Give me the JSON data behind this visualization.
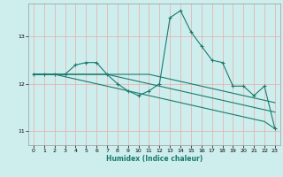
{
  "title": "",
  "xlabel": "Humidex (Indice chaleur)",
  "ylabel": "",
  "background_color": "#ceeeed",
  "grid_color": "#e8aaaa",
  "line_color": "#1a7a6e",
  "xlim": [
    -0.5,
    23.5
  ],
  "ylim": [
    10.7,
    13.7
  ],
  "yticks": [
    11,
    12,
    13
  ],
  "xticks": [
    0,
    1,
    2,
    3,
    4,
    5,
    6,
    7,
    8,
    9,
    10,
    11,
    12,
    13,
    14,
    15,
    16,
    17,
    18,
    19,
    20,
    21,
    22,
    23
  ],
  "series1": {
    "x": [
      0,
      1,
      2,
      3,
      4,
      5,
      6,
      7,
      8,
      9,
      10,
      11,
      12,
      13,
      14,
      15,
      16,
      17,
      18,
      19,
      20,
      21,
      22,
      23
    ],
    "y": [
      12.2,
      12.2,
      12.2,
      12.2,
      12.4,
      12.45,
      12.45,
      12.2,
      12.0,
      11.85,
      11.75,
      11.85,
      12.0,
      13.4,
      13.55,
      13.1,
      12.8,
      12.5,
      12.45,
      11.95,
      11.95,
      11.75,
      11.95,
      11.05
    ]
  },
  "series2": {
    "x": [
      0,
      1,
      2,
      3,
      4,
      5,
      6,
      7,
      8,
      9,
      10,
      11,
      12,
      13,
      14,
      15,
      16,
      17,
      18,
      19,
      20,
      21,
      22,
      23
    ],
    "y": [
      12.2,
      12.2,
      12.2,
      12.2,
      12.2,
      12.2,
      12.2,
      12.2,
      12.15,
      12.1,
      12.05,
      12.0,
      11.95,
      11.9,
      11.85,
      11.8,
      11.75,
      11.7,
      11.65,
      11.6,
      11.55,
      11.5,
      11.45,
      11.4
    ]
  },
  "series3": {
    "x": [
      0,
      1,
      2,
      3,
      4,
      5,
      6,
      7,
      8,
      9,
      10,
      11,
      12,
      13,
      14,
      15,
      16,
      17,
      18,
      19,
      20,
      21,
      22,
      23
    ],
    "y": [
      12.2,
      12.2,
      12.2,
      12.15,
      12.1,
      12.05,
      12.0,
      11.95,
      11.9,
      11.85,
      11.8,
      11.75,
      11.7,
      11.65,
      11.6,
      11.55,
      11.5,
      11.45,
      11.4,
      11.35,
      11.3,
      11.25,
      11.2,
      11.05
    ]
  },
  "series4": {
    "x": [
      0,
      1,
      2,
      3,
      4,
      5,
      6,
      7,
      8,
      9,
      10,
      11,
      12,
      13,
      14,
      15,
      16,
      17,
      18,
      19,
      20,
      21,
      22,
      23
    ],
    "y": [
      12.2,
      12.2,
      12.2,
      12.2,
      12.2,
      12.2,
      12.2,
      12.2,
      12.2,
      12.2,
      12.2,
      12.2,
      12.15,
      12.1,
      12.05,
      12.0,
      11.95,
      11.9,
      11.85,
      11.8,
      11.75,
      11.7,
      11.65,
      11.6
    ]
  }
}
